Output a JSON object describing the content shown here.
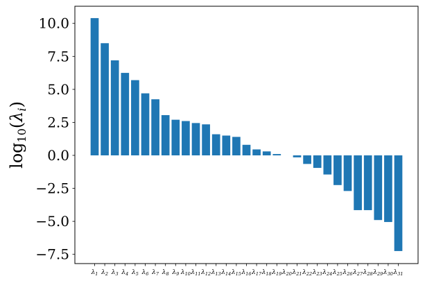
{
  "chart_data": {
    "type": "bar",
    "title": "",
    "xlabel": "",
    "ylabel": "log10(λi)",
    "ylabel_parts": {
      "base": "log",
      "base_sub": "10",
      "open": "(",
      "var": "λ",
      "var_sub": "i",
      "close": ")"
    },
    "categories": [
      "λ1",
      "λ2",
      "λ3",
      "λ4",
      "λ5",
      "λ6",
      "λ7",
      "λ8",
      "λ9",
      "λ10",
      "λ11",
      "λ12",
      "λ13",
      "λ14",
      "λ15",
      "λ16",
      "λ17",
      "λ18",
      "λ19",
      "λ20",
      "λ21",
      "λ22",
      "λ23",
      "λ24",
      "λ25",
      "λ26",
      "λ27",
      "λ28",
      "λ29",
      "λ30",
      "λ31"
    ],
    "values": [
      10.4,
      8.5,
      7.2,
      6.25,
      5.7,
      4.7,
      4.25,
      3.05,
      2.7,
      2.6,
      2.45,
      2.35,
      1.6,
      1.5,
      1.4,
      0.8,
      0.45,
      0.3,
      0.1,
      0.0,
      -0.15,
      -0.65,
      -0.95,
      -1.45,
      -2.25,
      -2.7,
      -4.15,
      -4.15,
      -4.9,
      -5.05,
      -7.25
    ],
    "ylim": [
      -8.2,
      11.3
    ],
    "yticks": [
      10.0,
      7.5,
      5.0,
      2.5,
      0.0,
      -2.5,
      -5.0,
      -7.5
    ],
    "ytick_labels": [
      "10.0",
      "7.5",
      "5.0",
      "2.5",
      "0.0",
      "−2.5",
      "−5.0",
      "−7.5"
    ],
    "bar_color": "#1f77b4",
    "grid": false,
    "legend": "none"
  }
}
